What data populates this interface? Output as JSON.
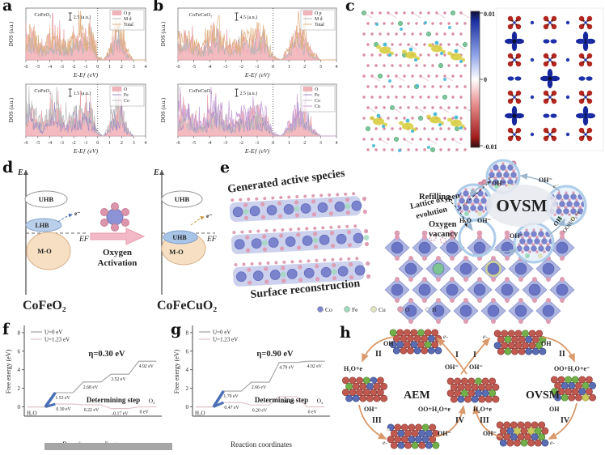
{
  "panel_labels": {
    "a": "a",
    "b": "b",
    "c": "c",
    "d": "d",
    "e": "e",
    "f": "f",
    "g": "g",
    "h": "h"
  },
  "dos": {
    "ylabel": "DOS (a.u.)",
    "xlabel": "E-Eƒ (eV)",
    "xticks": [
      "-6",
      "-5",
      "-4",
      "-3",
      "-2",
      "-1",
      "0",
      "1",
      "2",
      "3",
      "4"
    ],
    "a_top": {
      "title": "CoFeO₂",
      "scale": "2.5 (a.u.)",
      "legend": [
        {
          "label": "O p",
          "color": "#f2b3b9",
          "fill": true
        },
        {
          "label": "M d",
          "color": "#b4b4b4"
        },
        {
          "label": "Total",
          "color": "#e0b080"
        }
      ]
    },
    "a_bottom": {
      "title": "CoFeO₂",
      "scale": "1.5 (a.u.)",
      "legend": [
        {
          "label": "O",
          "color": "#f2b3b9",
          "fill": true
        },
        {
          "label": "Fe",
          "color": "#9b8ec4"
        },
        {
          "label": "Co",
          "color": "#bdbdbd"
        }
      ]
    },
    "b_top": {
      "title": "CoFeCuO₂",
      "scale": "4.5 (a.u.)",
      "legend": [
        {
          "label": "O p",
          "color": "#f2b3b9",
          "fill": true
        },
        {
          "label": "M d",
          "color": "#b4b4b4"
        },
        {
          "label": "Total",
          "color": "#e0b080"
        }
      ]
    },
    "b_bottom": {
      "title": "CoFeCuO₂",
      "scale": "2.5 (a.u.)",
      "legend": [
        {
          "label": "O",
          "color": "#f2b3b9",
          "fill": true
        },
        {
          "label": "Fe",
          "color": "#9b8ec4"
        },
        {
          "label": "Co",
          "color": "#bdbdbd"
        },
        {
          "label": "Cu",
          "color": "#c9a0d8"
        }
      ]
    }
  },
  "c": {
    "colorbar": {
      "max": "0.01",
      "mid": "0",
      "min": "-0.01"
    }
  },
  "d": {
    "left": {
      "axis": "E",
      "uhb": "UHB",
      "lhb": "LHB",
      "electron": "e⁻",
      "fermi": "EF",
      "mo": "M-O",
      "compound": "CoFeO₂"
    },
    "center": {
      "line1": "Oxygen",
      "line2": "Activation"
    },
    "right": {
      "axis": "E",
      "uhb": "UHB",
      "uhb2": "UHB",
      "electron": "e⁻",
      "fermi": "EF",
      "mo": "M-O",
      "compound": "CoFeCuO₂"
    }
  },
  "e": {
    "generated": "Generated active species",
    "surface": "Surface reconstruction",
    "lattice1": "Lattice oxygen",
    "lattice2": "evolution",
    "refilling": "Refilling",
    "vacancy1": "Oxygen",
    "vacancy2": "vacancy",
    "cycle_title": "OVSM",
    "labels": {
      "oh_top_left": "OH⁻",
      "oh_top_right": "OH⁻",
      "h2o": "H₂O",
      "oh_left": "OH⁻",
      "oh_bottom": "OH⁻",
      "oh_rot": "OH",
      "ooh_rot": "OOH/O₂+e⁻",
      "e1": "e⁻",
      "e2": "e⁻"
    },
    "legend": [
      {
        "name": "Co",
        "color": "#8087cb"
      },
      {
        "name": "Fe",
        "color": "#9fd8bc"
      },
      {
        "name": "Cu",
        "color": "#dfe2bd"
      },
      {
        "name": "O",
        "color": "#dd9eb4"
      },
      {
        "name": "H",
        "color": "#e9e9ef"
      }
    ]
  },
  "h": {
    "aem_title": "AEM",
    "ovsm_title": "OVSM",
    "center": {
      "e_left": "e-",
      "e_right": "e-",
      "I_left": "I",
      "I_right": "I",
      "oh_left": "OH⁻",
      "oh_right": "OH⁻"
    },
    "aem": {
      "II": "II",
      "oh_top": "OH",
      "h2oe": "H₂O+e",
      "III": "III",
      "oh_mid": "OH⁻",
      "e_bot": "e-",
      "IV": "IV",
      "oh_bot": "OH⁻",
      "oo": "OO+H₂O+e"
    },
    "ovsm": {
      "II": "II",
      "oh_top": "OH",
      "oo": "OO+H₂O+e⁻",
      "IV": "IV",
      "oh_mid": "OH",
      "e_bot": "e-",
      "III": "III",
      "oh_bot": "OH⁻",
      "h2oe": "H₂O+e"
    }
  },
  "chart_data": [
    {
      "id": "f",
      "type": "line",
      "xlabel": "Reaction coordinates",
      "ylabel": "Free energy (eV)",
      "ylim": [
        -1,
        8
      ],
      "yticks": [
        0,
        2,
        4,
        6,
        8
      ],
      "series": [
        {
          "name": "U=0 eV",
          "color": "#a0a0a0",
          "values": [
            0,
            1.53,
            2.68,
            3.52,
            4.92
          ]
        },
        {
          "name": "U=1.23 eV",
          "color": "#dfc0c4",
          "values": [
            0,
            0.3,
            0.22,
            -0.17,
            0
          ]
        }
      ],
      "step_labels_u0": [
        "",
        "1.53 eV",
        "2.68 eV",
        "3.52 eV",
        "4.92 eV"
      ],
      "step_labels_u123": [
        "",
        "0.30 eV",
        "0.22 eV",
        "-0.17 eV",
        "0 eV"
      ],
      "start_label": "H₂O",
      "end_label": "O₂",
      "eta": "η=0.30 eV",
      "annotation": "Determining step",
      "eta_color": "#3c64ae",
      "determining_color": "#4a6fb5"
    },
    {
      "id": "g",
      "type": "line",
      "xlabel": "Reaction coordinates",
      "ylabel": "Free energy (eV)",
      "ylim": [
        -1,
        8
      ],
      "yticks": [
        0,
        2,
        4,
        6,
        8
      ],
      "series": [
        {
          "name": "U=0 eV",
          "color": "#a0a0a0",
          "values": [
            0,
            1.7,
            2.66,
            4.79,
            4.92
          ]
        },
        {
          "name": "U=1.23 eV",
          "color": "#dfc0c4",
          "values": [
            0,
            0.47,
            0.2,
            1.1,
            0
          ]
        }
      ],
      "step_labels_u0": [
        "",
        "1.70 eV",
        "2.66 eV",
        "4.79 eV",
        "4.92 eV"
      ],
      "step_labels_u123": [
        "",
        "0.47 eV",
        "0.20 eV",
        "1.10 eV",
        "0 eV"
      ],
      "start_label": "H₂O",
      "end_label": "O₂",
      "eta": "η=0.90 eV",
      "annotation": "Determining step",
      "eta_color": "#3c64ae",
      "determining_color": "#4a6fb5"
    },
    {
      "id": "dos-envelope-estimate",
      "type": "area",
      "x_start": -6,
      "x_step": 0.5,
      "note": "estimated relative DOS envelope shared by panels a/b, arb. units",
      "envelope": [
        0.75,
        0.8,
        0.55,
        0.35,
        0.75,
        0.9,
        0.5,
        0.45,
        0.65,
        0.7,
        0.85,
        0.75,
        0.1,
        0,
        0.35,
        0.9,
        0.8,
        0.2,
        0,
        0,
        0
      ]
    }
  ]
}
